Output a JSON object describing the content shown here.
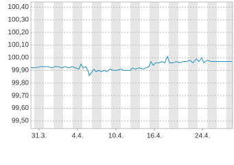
{
  "chart_data": {
    "type": "line",
    "x": [
      -0.86,
      -0.5,
      0.21,
      0.93,
      1.29,
      1.64,
      2.0,
      2.36,
      2.71,
      3.07,
      3.43,
      3.79,
      4.14,
      4.36,
      4.57,
      4.86,
      5.07,
      5.21,
      5.43,
      5.71,
      5.93,
      6.21,
      6.5,
      6.79,
      7.07,
      7.36,
      7.71,
      8.07,
      8.5,
      8.79,
      9.21,
      9.5,
      9.71,
      10.0,
      10.43,
      10.79,
      11.14,
      11.43,
      11.64,
      11.86,
      12.14,
      12.5,
      12.79,
      13.07,
      13.36,
      13.57,
      13.93,
      14.29,
      14.64,
      15.0,
      15.36,
      15.71,
      16.0,
      16.36,
      16.64,
      16.93,
      17.14,
      17.5,
      17.93,
      18.36,
      18.79,
      19.21,
      19.64,
      20.07
    ],
    "series": [
      {
        "color": "#1a8fc8",
        "values": [
          99.92,
          99.92,
          99.93,
          99.93,
          99.92,
          99.93,
          99.93,
          99.92,
          99.93,
          99.92,
          99.93,
          99.92,
          99.91,
          99.95,
          99.92,
          99.93,
          99.9,
          99.86,
          99.88,
          99.91,
          99.89,
          99.9,
          99.89,
          99.9,
          99.89,
          99.91,
          99.9,
          99.9,
          99.91,
          99.9,
          99.9,
          99.9,
          99.92,
          99.91,
          99.92,
          99.91,
          99.92,
          99.93,
          99.97,
          99.94,
          99.96,
          99.96,
          99.97,
          99.96,
          100.01,
          99.96,
          99.96,
          99.97,
          99.96,
          99.97,
          99.97,
          99.98,
          99.96,
          99.99,
          99.97,
          100.0,
          99.96,
          99.98,
          99.97,
          99.97,
          99.97,
          99.97,
          99.97,
          99.97
        ]
      }
    ],
    "xlim": [
      -0.86,
      20.14
    ],
    "xticks": [
      {
        "value": 0,
        "label": "31.3."
      },
      {
        "value": 4,
        "label": "4.4."
      },
      {
        "value": 8,
        "label": "10.4."
      },
      {
        "value": 12,
        "label": "16.4."
      },
      {
        "value": 17,
        "label": "24.4."
      }
    ],
    "ylim": [
      99.44,
      100.44
    ],
    "yticks": [
      {
        "value": 99.5,
        "label": "99,50"
      },
      {
        "value": 99.6,
        "label": "99,60"
      },
      {
        "value": 99.7,
        "label": "99,70"
      },
      {
        "value": 99.8,
        "label": "99,80"
      },
      {
        "value": 99.9,
        "label": "99,90"
      },
      {
        "value": 100.0,
        "label": "100,00"
      },
      {
        "value": 100.1,
        "label": "100,10"
      },
      {
        "value": 100.2,
        "label": "100,20"
      },
      {
        "value": 100.3,
        "label": "100,30"
      },
      {
        "value": 100.4,
        "label": "100,40"
      }
    ],
    "grid": true
  }
}
